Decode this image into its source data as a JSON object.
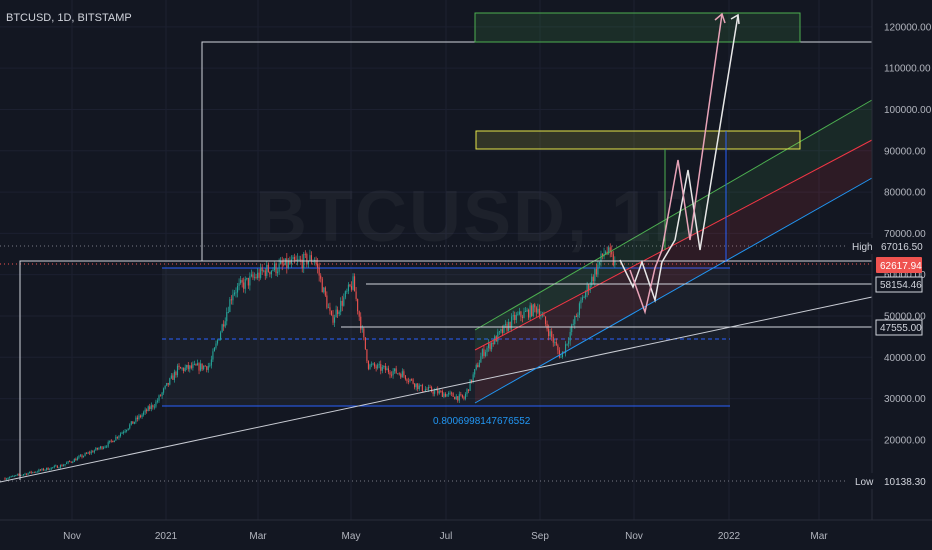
{
  "header": {
    "symbol_label": "BTCUSD, 1D, BITSTAMP",
    "watermark": "BTCUSD, 1D"
  },
  "price_axis": {
    "ticks": [
      "120000.00",
      "110000.00",
      "100000.00",
      "90000.00",
      "80000.00",
      "70000.00",
      "60000.00",
      "50000.00",
      "40000.00",
      "30000.00",
      "20000.00"
    ],
    "high_tag": "High",
    "high_value": "67016.50",
    "last_value": "62617.94",
    "level_1": "58154.46",
    "level_2": "47555.00",
    "low_tag": "Low",
    "low_value": "10138.30"
  },
  "time_axis": {
    "ticks": [
      "Nov",
      "2021",
      "Mar",
      "May",
      "Jul",
      "Sep",
      "Nov",
      "2022",
      "Mar"
    ]
  },
  "annotations": {
    "fib_label": "0.8006998147676552"
  },
  "colors": {
    "background": "#131722",
    "text": "#d1d4dc",
    "candle_up": "#26a69a",
    "candle_down": "#ef5350",
    "last_price_tag": "#ef5350",
    "channel_green": "#4caf50",
    "channel_red": "#f23645",
    "channel_blue": "#2196f3",
    "target_box_yellow": "#e5e54a",
    "fib_text": "#2196f3"
  },
  "chart_data": {
    "type": "candlestick",
    "symbol": "BTCUSD",
    "interval": "1D",
    "exchange": "BITSTAMP",
    "price_range": [
      8000,
      125000
    ],
    "high": 67016.5,
    "low": 10138.3,
    "last": 62617.94,
    "horizontal_levels": [
      58154.46,
      47555.0
    ],
    "approximate_close_path": [
      {
        "date": "2020-09-25",
        "close": 10700
      },
      {
        "date": "2020-11-01",
        "close": 13800
      },
      {
        "date": "2020-12-01",
        "close": 19000
      },
      {
        "date": "2021-01-01",
        "close": 29000
      },
      {
        "date": "2021-01-15",
        "close": 37000
      },
      {
        "date": "2021-02-05",
        "close": 38000
      },
      {
        "date": "2021-02-20",
        "close": 56000
      },
      {
        "date": "2021-03-13",
        "close": 61000
      },
      {
        "date": "2021-04-14",
        "close": 64000
      },
      {
        "date": "2021-04-25",
        "close": 49000
      },
      {
        "date": "2021-05-09",
        "close": 58000
      },
      {
        "date": "2021-05-19",
        "close": 38000
      },
      {
        "date": "2021-06-10",
        "close": 36000
      },
      {
        "date": "2021-06-22",
        "close": 32500
      },
      {
        "date": "2021-07-20",
        "close": 30000
      },
      {
        "date": "2021-08-01",
        "close": 41000
      },
      {
        "date": "2021-08-22",
        "close": 49500
      },
      {
        "date": "2021-09-06",
        "close": 52000
      },
      {
        "date": "2021-09-21",
        "close": 40000
      },
      {
        "date": "2021-10-06",
        "close": 55000
      },
      {
        "date": "2021-10-20",
        "close": 66000
      },
      {
        "date": "2021-10-26",
        "close": 62600
      }
    ]
  }
}
